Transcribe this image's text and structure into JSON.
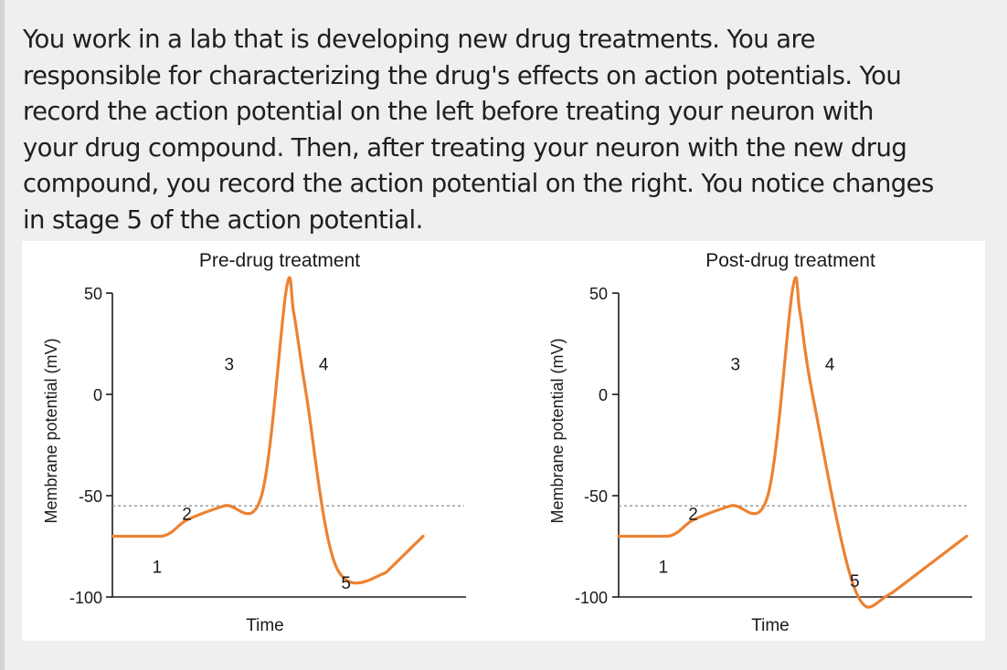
{
  "question": {
    "lines": [
      "You work in a lab that is developing new drug treatments.  You are",
      "responsible for characterizing the drug's effects on action potentials.  You",
      "record the action potential on the left before treating your neuron with",
      "your drug compound.  Then, after treating your neuron with the new drug",
      "compound, you record the action potential on the right.  You notice changes",
      "in stage 5 of the action potential."
    ]
  },
  "colors": {
    "trace": "#ec8232",
    "axis": "#1a1a1a",
    "threshold": "#8a8a8a"
  },
  "chart_data": [
    {
      "type": "line",
      "title": "Pre-drug treatment",
      "xlabel": "Time",
      "ylabel": "Membrane potential (mV)",
      "yticks": [
        "50",
        "0",
        "-50",
        "-100"
      ],
      "ylim": [
        -100,
        55
      ],
      "threshold": -55,
      "grid": false,
      "series": [
        {
          "x": [
            0,
            20,
            30,
            45,
            60,
            70,
            73,
            78,
            90,
            110,
            125
          ],
          "y": [
            -70,
            -70,
            -62,
            -55,
            -50,
            52,
            40,
            0,
            -85,
            -88,
            -70
          ]
        }
      ],
      "stage_labels": [
        {
          "text": "1",
          "x": 18,
          "y": -88
        },
        {
          "text": "2",
          "x": 30,
          "y": -62
        },
        {
          "text": "3",
          "x": 47,
          "y": 12
        },
        {
          "text": "4",
          "x": 85,
          "y": 12
        },
        {
          "text": "5",
          "x": 94,
          "y": -96
        }
      ]
    },
    {
      "type": "line",
      "title": "Post-drug treatment",
      "xlabel": "Time",
      "ylabel": "Membrane potential (mV)",
      "yticks": [
        "50",
        "0",
        "-50",
        "-100"
      ],
      "ylim": [
        -100,
        55
      ],
      "threshold": -55,
      "grid": false,
      "series": [
        {
          "x": [
            0,
            20,
            30,
            45,
            60,
            70,
            73,
            78,
            95,
            110,
            140
          ],
          "y": [
            -70,
            -70,
            -62,
            -55,
            -50,
            52,
            40,
            0,
            -96,
            -98,
            -70
          ]
        }
      ],
      "stage_labels": [
        {
          "text": "1",
          "x": 18,
          "y": -88
        },
        {
          "text": "2",
          "x": 30,
          "y": -62
        },
        {
          "text": "3",
          "x": 47,
          "y": 12
        },
        {
          "text": "4",
          "x": 85,
          "y": 12
        },
        {
          "text": "5",
          "x": 95,
          "y": -95
        }
      ]
    }
  ]
}
